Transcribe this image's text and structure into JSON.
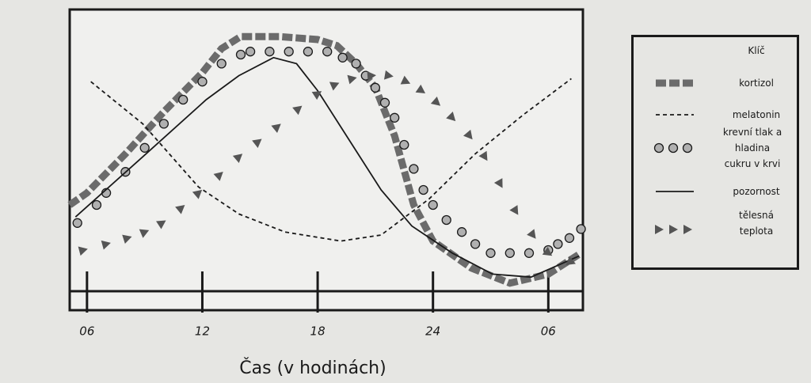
{
  "chart_data": {
    "type": "line",
    "xlabel": "Čas (v hodinách)",
    "legend_title": "Klíč",
    "xlim": [
      5.1,
      31.8
    ],
    "ylim": [
      0,
      100
    ],
    "xticks": [
      {
        "value": 6,
        "label": "06"
      },
      12,
      18,
      24,
      {
        "value": 30,
        "label": "06"
      }
    ],
    "legend": "right",
    "series": [
      {
        "name": "kortizol",
        "style": "thick-dash",
        "color": "#6b6b6b",
        "x": [
          5.1,
          6,
          8,
          10,
          12,
          13,
          14,
          16,
          18,
          19,
          20,
          21,
          22,
          23,
          24,
          26,
          28,
          30,
          31.7
        ],
        "values": [
          35,
          39,
          52,
          66,
          79,
          87,
          91,
          91,
          90,
          88,
          82,
          74,
          58,
          35,
          23,
          14,
          9,
          12,
          19
        ]
      },
      {
        "name": "melatonin",
        "style": "dash",
        "color": "#1a1a1a",
        "x": [
          6.2,
          8.9,
          11.8,
          13.9,
          16.3,
          19.2,
          21.3,
          23.8,
          26.2,
          28.7,
          31.2
        ],
        "values": [
          76,
          62,
          41,
          32,
          26,
          23,
          25,
          37,
          52,
          65,
          77
        ]
      },
      {
        "name": "krevní tlak a hladina cukru v krvi",
        "style": "circle",
        "color": "#b0b0b0",
        "x": [
          5.5,
          6.5,
          7,
          8,
          9,
          10,
          11,
          12,
          13,
          14,
          14.5,
          15.5,
          16.5,
          17.5,
          18.5,
          19.3,
          20,
          20.5,
          21,
          21.5,
          22,
          22.5,
          23,
          23.5,
          24,
          24.7,
          25.5,
          26.2,
          27,
          28,
          29,
          30,
          30.5,
          31.1,
          31.7
        ],
        "values": [
          29,
          35,
          39,
          46,
          54,
          62,
          70,
          76,
          82,
          85,
          86,
          86,
          86,
          86,
          86,
          84,
          82,
          78,
          74,
          69,
          64,
          55,
          47,
          40,
          35,
          30,
          26,
          22,
          19,
          19,
          19,
          20,
          22,
          24,
          27
        ]
      },
      {
        "name": "pozornost",
        "style": "solid",
        "color": "#1a1a1a",
        "x": [
          5.4,
          8.9,
          12.2,
          13.9,
          15.7,
          16.9,
          18,
          19.6,
          21.3,
          22.9,
          25,
          27.1,
          29.1,
          31.6
        ],
        "values": [
          31,
          51,
          70,
          78,
          84,
          82,
          73,
          57,
          40,
          28,
          19,
          12,
          11,
          18
        ]
      },
      {
        "name": "tělesná teplota",
        "style": "triangle",
        "color": "#555555",
        "x": [
          5.8,
          7,
          8.1,
          9,
          9.9,
          10.9,
          11.8,
          12.9,
          13.9,
          14.9,
          15.9,
          17,
          18,
          18.9,
          19.8,
          20.8,
          21.7,
          22.6,
          23.4,
          24.2,
          25,
          25.9,
          26.7,
          27.5,
          28.3,
          29.2,
          30,
          31.2
        ],
        "values": [
          20,
          22,
          24,
          26,
          29,
          34,
          39,
          45,
          51,
          56,
          61,
          67,
          72,
          75,
          77,
          78,
          78,
          76,
          73,
          69,
          64,
          58,
          51,
          42,
          33,
          25,
          19,
          16
        ]
      }
    ]
  }
}
